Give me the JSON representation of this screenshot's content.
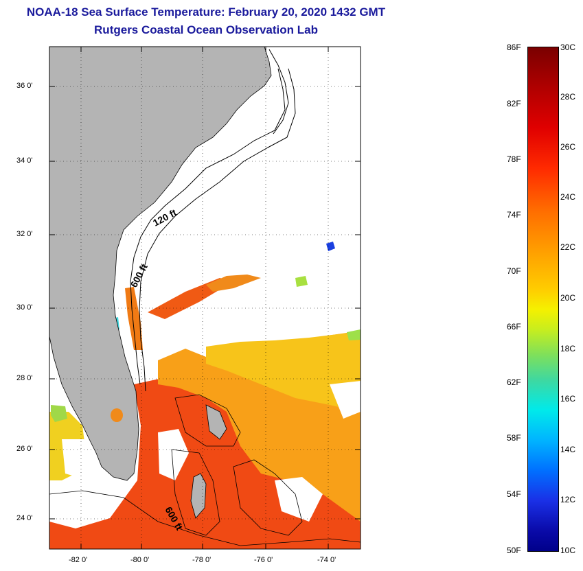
{
  "title": {
    "line1": "NOAA-18 Sea Surface Temperature:  February 20, 2020 1432 GMT",
    "line2": "Rutgers Coastal Ocean Observation Lab"
  },
  "map": {
    "lat_labels": [
      "36 0'",
      "34 0'",
      "32 0'",
      "30 0'",
      "28 0'",
      "26 0'",
      "24 0'"
    ],
    "lon_labels": [
      "-82 0'",
      "-80 0'",
      "-78 0'",
      "-76 0'",
      "-74 0'"
    ],
    "contour_labels": [
      "120 ft",
      "600 ft",
      "600 ft"
    ],
    "colors": {
      "land": "#b4b4b4",
      "warm_sst": "#ff5a0a",
      "mid_sst": "#ffb400",
      "cool_sst": "#e8e800"
    }
  },
  "colorbar": {
    "f_labels": [
      "86F",
      "82F",
      "78F",
      "74F",
      "70F",
      "66F",
      "62F",
      "58F",
      "54F",
      "50F"
    ],
    "c_labels": [
      "30C",
      "28C",
      "26C",
      "24C",
      "22C",
      "20C",
      "18C",
      "16C",
      "14C",
      "12C",
      "10C"
    ]
  }
}
